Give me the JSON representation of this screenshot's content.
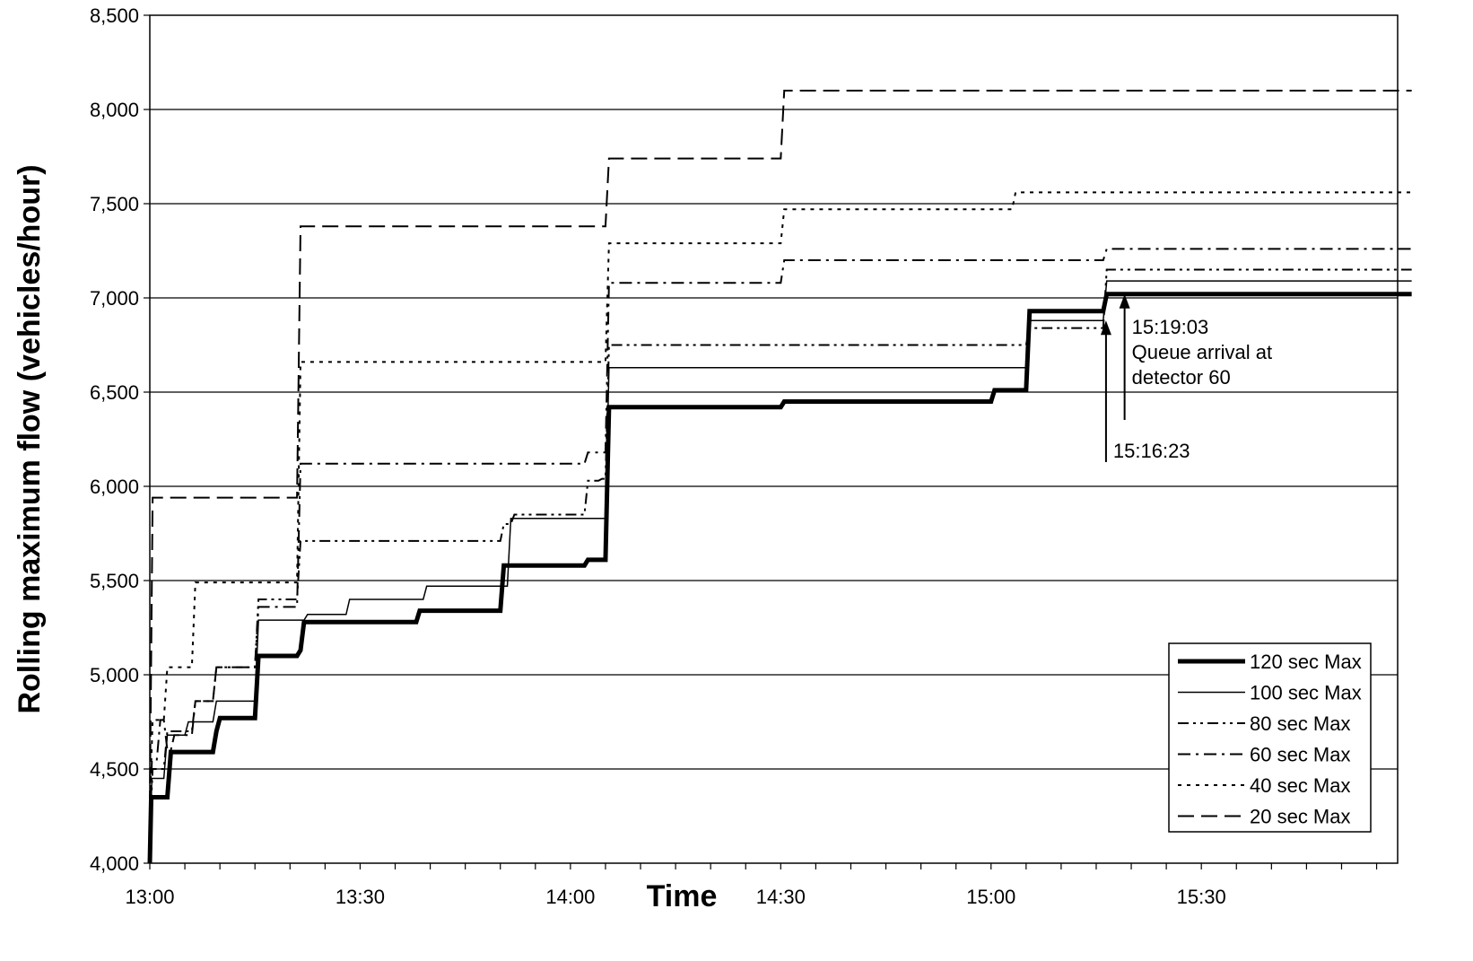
{
  "chart_data": {
    "type": "line",
    "title": "",
    "xlabel": "Time",
    "ylabel": "Rolling maximum flow (vehicles/hour)",
    "ylim": [
      4000,
      8500
    ],
    "xlim": [
      "13:00",
      "15:50"
    ],
    "x_unit": "minutes after 13:00",
    "x_ticks": [
      "13:00",
      "13:30",
      "14:00",
      "14:30",
      "15:00",
      "15:30"
    ],
    "y_ticks": [
      "4,000",
      "4,500",
      "5,000",
      "5,500",
      "6,000",
      "6,500",
      "7,000",
      "7,500",
      "8,000",
      "8,500"
    ],
    "grid": "horizontal",
    "legend_position": "bottom-right",
    "series": [
      {
        "name": "120 sec Max",
        "style": "thick-solid",
        "points": [
          [
            0,
            4000
          ],
          [
            0.2,
            4350
          ],
          [
            2.5,
            4350
          ],
          [
            3,
            4590
          ],
          [
            9,
            4590
          ],
          [
            9.5,
            4700
          ],
          [
            10,
            4770
          ],
          [
            15,
            4770
          ],
          [
            15.5,
            5100
          ],
          [
            21,
            5100
          ],
          [
            21.5,
            5130
          ],
          [
            22,
            5280
          ],
          [
            38,
            5280
          ],
          [
            38.5,
            5340
          ],
          [
            50,
            5340
          ],
          [
            50.5,
            5580
          ],
          [
            62,
            5580
          ],
          [
            62.5,
            5610
          ],
          [
            65,
            5610
          ],
          [
            65.5,
            6420
          ],
          [
            90,
            6420
          ],
          [
            90.5,
            6450
          ],
          [
            120,
            6450
          ],
          [
            120.5,
            6510
          ],
          [
            125,
            6510
          ],
          [
            125.5,
            6930
          ],
          [
            136,
            6930
          ],
          [
            136.5,
            7020
          ],
          [
            180,
            7020
          ]
        ]
      },
      {
        "name": "100 sec Max",
        "style": "thin-solid",
        "points": [
          [
            0,
            4100
          ],
          [
            0.3,
            4450
          ],
          [
            2,
            4450
          ],
          [
            2.5,
            4680
          ],
          [
            5,
            4680
          ],
          [
            5.5,
            4750
          ],
          [
            9,
            4750
          ],
          [
            9.5,
            4860
          ],
          [
            15,
            4860
          ],
          [
            15.5,
            5290
          ],
          [
            22,
            5290
          ],
          [
            22.5,
            5320
          ],
          [
            28,
            5320
          ],
          [
            28.5,
            5400
          ],
          [
            39,
            5400
          ],
          [
            39.5,
            5470
          ],
          [
            51,
            5470
          ],
          [
            51.5,
            5830
          ],
          [
            65,
            5830
          ],
          [
            65.5,
            6630
          ],
          [
            125,
            6630
          ],
          [
            125.5,
            6880
          ],
          [
            136,
            6880
          ],
          [
            136.5,
            7090
          ],
          [
            180,
            7090
          ]
        ]
      },
      {
        "name": "80 sec Max",
        "style": "dash-dot-dot",
        "points": [
          [
            0,
            4150
          ],
          [
            0.4,
            4500
          ],
          [
            2,
            4500
          ],
          [
            2.5,
            4700
          ],
          [
            6,
            4700
          ],
          [
            6.5,
            4860
          ],
          [
            9,
            4860
          ],
          [
            9.5,
            5040
          ],
          [
            15,
            5040
          ],
          [
            15.5,
            5400
          ],
          [
            21,
            5400
          ],
          [
            21.5,
            5710
          ],
          [
            50,
            5710
          ],
          [
            50.5,
            5800
          ],
          [
            51.5,
            5800
          ],
          [
            52,
            5850
          ],
          [
            62,
            5850
          ],
          [
            62.5,
            6030
          ],
          [
            64,
            6030
          ],
          [
            64.5,
            6040
          ],
          [
            65,
            6040
          ],
          [
            65.5,
            6750
          ],
          [
            125,
            6750
          ],
          [
            125.5,
            6840
          ],
          [
            136,
            6840
          ],
          [
            136.5,
            7150
          ],
          [
            180,
            7150
          ]
        ]
      },
      {
        "name": "60 sec Max",
        "style": "dash-dot",
        "points": [
          [
            0,
            4200
          ],
          [
            0.3,
            4550
          ],
          [
            1,
            4550
          ],
          [
            1.5,
            4760
          ],
          [
            2,
            4760
          ],
          [
            2.5,
            4600
          ],
          [
            3,
            4600
          ],
          [
            3.5,
            4680
          ],
          [
            6,
            4680
          ],
          [
            6.5,
            4860
          ],
          [
            9,
            4860
          ],
          [
            9.5,
            5040
          ],
          [
            15,
            5040
          ],
          [
            15.5,
            5360
          ],
          [
            21,
            5360
          ],
          [
            21.5,
            6120
          ],
          [
            62,
            6120
          ],
          [
            62.5,
            6180
          ],
          [
            65,
            6180
          ],
          [
            65.5,
            7080
          ],
          [
            90,
            7080
          ],
          [
            90.5,
            7200
          ],
          [
            136,
            7200
          ],
          [
            136.5,
            7260
          ],
          [
            180,
            7260
          ]
        ]
      },
      {
        "name": "40 sec Max",
        "style": "dotted",
        "points": [
          [
            0,
            4300
          ],
          [
            0.4,
            4760
          ],
          [
            2,
            4760
          ],
          [
            2.5,
            5040
          ],
          [
            6,
            5040
          ],
          [
            6.5,
            5490
          ],
          [
            21,
            5490
          ],
          [
            21.5,
            6660
          ],
          [
            65,
            6660
          ],
          [
            65.5,
            7290
          ],
          [
            90,
            7290
          ],
          [
            90.5,
            7470
          ],
          [
            123,
            7470
          ],
          [
            123.5,
            7560
          ],
          [
            180,
            7560
          ]
        ]
      },
      {
        "name": "20 sec Max",
        "style": "dashed",
        "points": [
          [
            0,
            4300
          ],
          [
            0.4,
            5940
          ],
          [
            21,
            5940
          ],
          [
            21.5,
            7380
          ],
          [
            65,
            7380
          ],
          [
            65.5,
            7740
          ],
          [
            90,
            7740
          ],
          [
            90.5,
            8100
          ],
          [
            180,
            8100
          ]
        ]
      }
    ],
    "annotations": [
      {
        "text": "15:16:23",
        "x": 136.4,
        "y": 6880
      },
      {
        "lines": [
          "15:19:03",
          "Queue arrival at",
          "detector 60"
        ],
        "x": 139.05,
        "y": 7020
      }
    ]
  }
}
